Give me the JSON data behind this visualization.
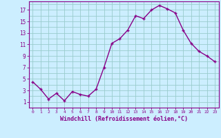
{
  "x": [
    0,
    1,
    2,
    3,
    4,
    5,
    6,
    7,
    8,
    9,
    10,
    11,
    12,
    13,
    14,
    15,
    16,
    17,
    18,
    19,
    20,
    21,
    22,
    23
  ],
  "y": [
    4.5,
    3.2,
    1.5,
    2.5,
    1.2,
    2.8,
    2.3,
    2.0,
    3.2,
    7.0,
    11.2,
    12.0,
    13.5,
    16.0,
    15.5,
    17.0,
    17.8,
    17.2,
    16.5,
    13.5,
    11.2,
    9.8,
    9.0,
    8.0
  ],
  "line_color": "#880088",
  "bg_color": "#cceeff",
  "grid_color": "#99cccc",
  "xlabel": "Windchill (Refroidissement éolien,°C)",
  "yticks": [
    1,
    3,
    5,
    7,
    9,
    11,
    13,
    15,
    17
  ],
  "xticks": [
    0,
    1,
    2,
    3,
    4,
    5,
    6,
    7,
    8,
    9,
    10,
    11,
    12,
    13,
    14,
    15,
    16,
    17,
    18,
    19,
    20,
    21,
    22,
    23
  ],
  "ylim": [
    0,
    18.5
  ],
  "xlim": [
    -0.5,
    23.5
  ]
}
